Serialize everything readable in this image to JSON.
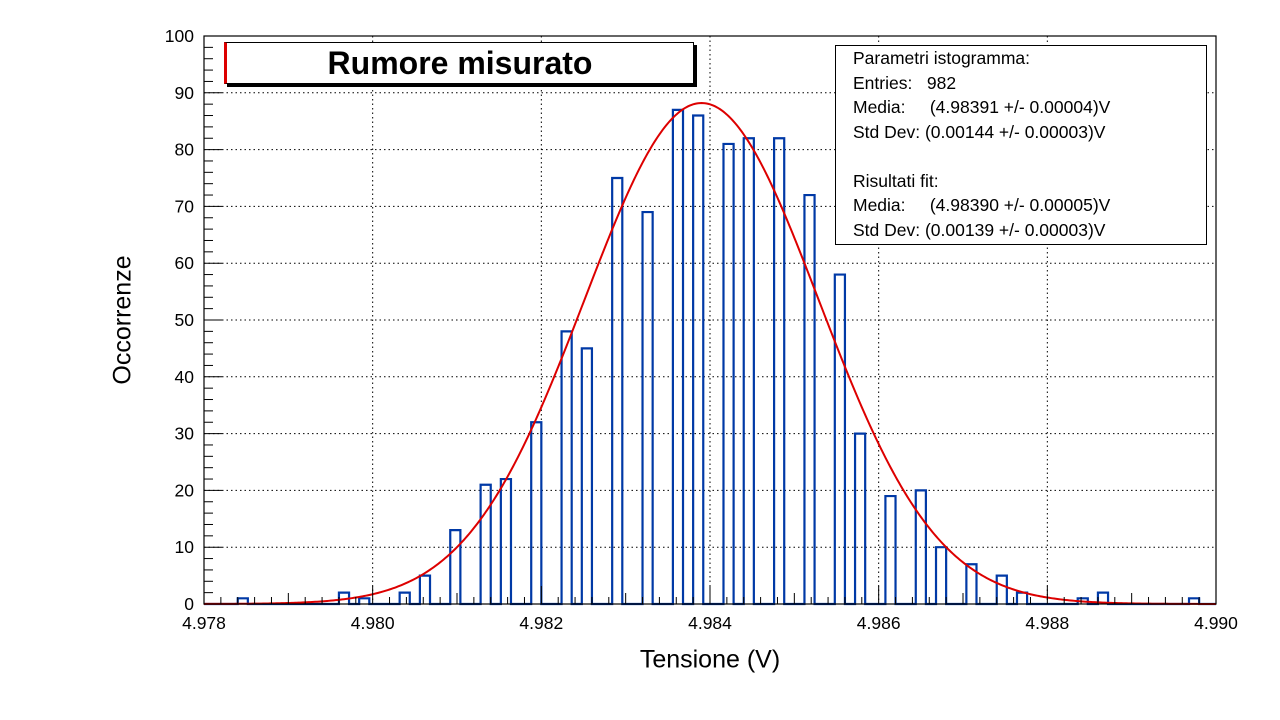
{
  "chart_data": {
    "type": "bar",
    "title": "Rumore misurato",
    "xlabel": "Tensione (V)",
    "ylabel": "Occorrenze",
    "xlim": [
      4.978,
      4.99
    ],
    "ylim": [
      0,
      100
    ],
    "xticks": [
      "4.978",
      "4.980",
      "4.982",
      "4.984",
      "4.986",
      "4.988",
      "4.990"
    ],
    "yticks": [
      "0",
      "10",
      "20",
      "30",
      "40",
      "50",
      "60",
      "70",
      "80",
      "90",
      "100"
    ],
    "grid": true,
    "bin_width": 0.00012,
    "bins": [
      {
        "x": 4.97846,
        "count": 1
      },
      {
        "x": 4.97966,
        "count": 2
      },
      {
        "x": 4.9799,
        "count": 1
      },
      {
        "x": 4.98038,
        "count": 2
      },
      {
        "x": 4.98062,
        "count": 5
      },
      {
        "x": 4.98098,
        "count": 13
      },
      {
        "x": 4.98134,
        "count": 21
      },
      {
        "x": 4.98158,
        "count": 22
      },
      {
        "x": 4.98194,
        "count": 32
      },
      {
        "x": 4.9823,
        "count": 48
      },
      {
        "x": 4.98254,
        "count": 45
      },
      {
        "x": 4.9829,
        "count": 75
      },
      {
        "x": 4.98326,
        "count": 69
      },
      {
        "x": 4.98362,
        "count": 87
      },
      {
        "x": 4.98386,
        "count": 86
      },
      {
        "x": 4.98422,
        "count": 81
      },
      {
        "x": 4.98446,
        "count": 82
      },
      {
        "x": 4.98482,
        "count": 82
      },
      {
        "x": 4.98518,
        "count": 72
      },
      {
        "x": 4.98554,
        "count": 58
      },
      {
        "x": 4.98578,
        "count": 30
      },
      {
        "x": 4.98614,
        "count": 19
      },
      {
        "x": 4.9865,
        "count": 20
      },
      {
        "x": 4.98674,
        "count": 10
      },
      {
        "x": 4.9871,
        "count": 7
      },
      {
        "x": 4.98746,
        "count": 5
      },
      {
        "x": 4.9877,
        "count": 2
      },
      {
        "x": 4.98842,
        "count": 1
      },
      {
        "x": 4.98866,
        "count": 2
      },
      {
        "x": 4.98974,
        "count": 1
      }
    ],
    "fit": {
      "function": "gaussian",
      "amplitude": 88.2,
      "mean": 4.9839,
      "sigma": 0.00139,
      "color": "#dd0000"
    },
    "histogram_color": "#0039a6"
  },
  "stats": {
    "header": "Parametri istogramma:",
    "entries": "Entries:   982",
    "mean": "Media:     (4.98391 +/- 0.00004)V",
    "stddev": "Std Dev: (0.00144 +/- 0.00003)V",
    "fit_header": "Risultati fit:",
    "fit_mean": "Media:     (4.98390 +/- 0.00005)V",
    "fit_stddev": "Std Dev: (0.00139 +/- 0.00003)V"
  }
}
